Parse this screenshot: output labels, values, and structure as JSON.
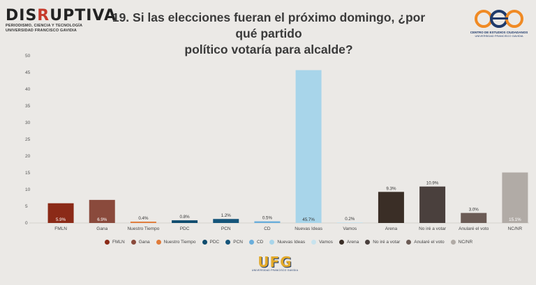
{
  "header": {
    "logo_main_pre": "DIS",
    "logo_main_accent": "R",
    "logo_main_post": "UPTIVA",
    "logo_sub1": "PERIODISMO, CIENCIA Y TECNOLOGÍA",
    "logo_sub2": "UNIVERSIDAD FRANCISCO GAVIDIA",
    "title_line1": "19. Si las elecciones fueran el próximo domingo, ¿por qué partido",
    "title_line2": "político votaría para alcalde?",
    "right_logo_line1": "CENTRO DE ESTUDIOS CIUDADANOS",
    "right_logo_line2": "UNIVERSIDAD FRANCISCO GAVIDIA",
    "right_logo_icon": "cec-logo-icon"
  },
  "footer": {
    "logo_text": "UFG",
    "logo_sub": "UNIVERSIDAD FRANCISCO GAVIDIA"
  },
  "chart_data": {
    "type": "bar",
    "title": "19. Si las elecciones fueran el próximo domingo, ¿por qué partido político votaría para alcalde?",
    "xlabel": "",
    "ylabel": "",
    "ylim": [
      0,
      50
    ],
    "yticks": [
      0,
      5,
      10,
      15,
      20,
      25,
      30,
      35,
      40,
      45,
      50
    ],
    "grid": false,
    "legend_position": "bottom",
    "categories": [
      "FMLN",
      "Gana",
      "Nuestro Tiempo",
      "PDC",
      "PCN",
      "CD",
      "Nuevas Ideas",
      "Vamos",
      "Arena",
      "No iré a votar",
      "Anularé el voto",
      "NC/NR"
    ],
    "values": [
      5.9,
      6.9,
      0.4,
      0.8,
      1.2,
      0.5,
      45.7,
      0.2,
      9.3,
      10.9,
      3.0,
      15.1
    ],
    "data_labels": [
      "5.9%",
      "6.9%",
      "0.4%",
      "0.8%",
      "1.2%",
      "0.5%",
      "45.7%",
      "0.2%",
      "9.3%",
      "10.9%",
      "3.0%",
      "15.1%"
    ],
    "colors": [
      "#8b2a17",
      "#8a4a3c",
      "#e07b39",
      "#0f4c6e",
      "#15557a",
      "#6aaedb",
      "#a8d5ea",
      "#c8e3ee",
      "#3a2e26",
      "#4a403d",
      "#6b5b55",
      "#b1aba6"
    ],
    "label_inside": [
      true,
      true,
      false,
      false,
      false,
      false,
      true,
      false,
      false,
      false,
      false,
      true
    ]
  }
}
